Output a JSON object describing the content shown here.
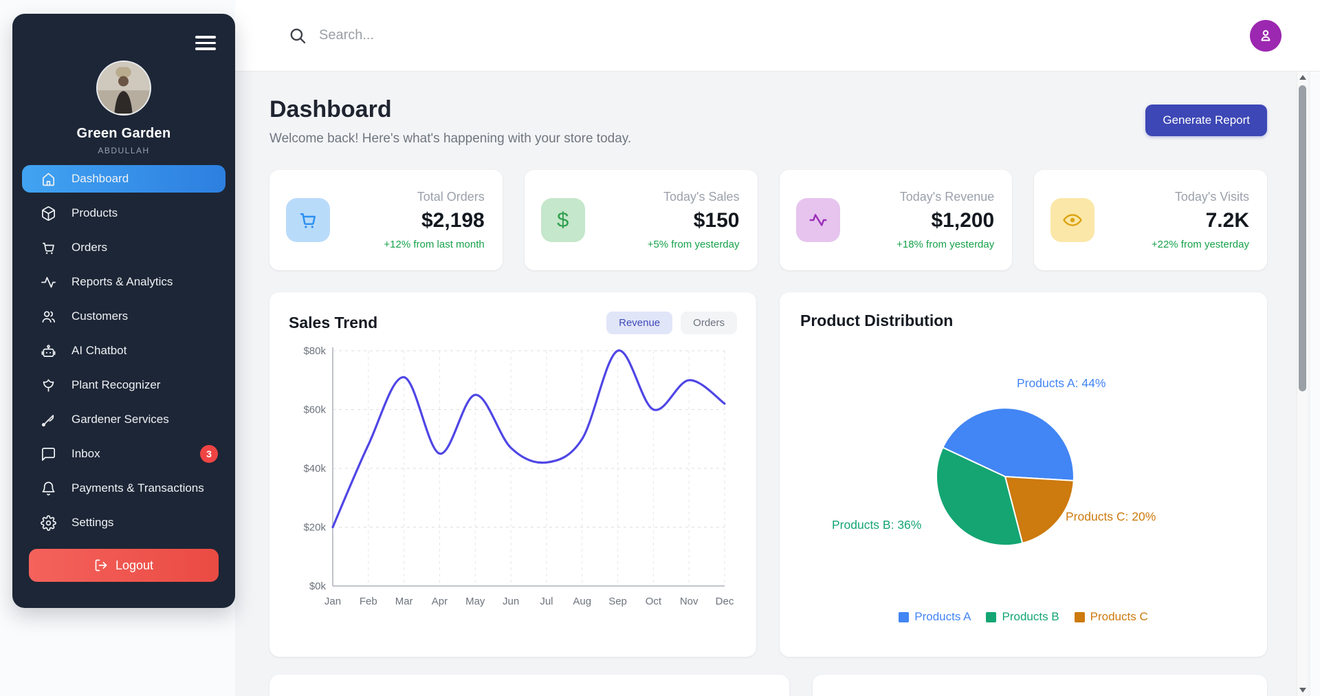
{
  "sidebar": {
    "store_name": "Green Garden",
    "user_name": "ABDULLAH",
    "items": [
      {
        "label": "Dashboard",
        "icon": "home-icon",
        "active": true
      },
      {
        "label": "Products",
        "icon": "package-icon"
      },
      {
        "label": "Orders",
        "icon": "cart-icon"
      },
      {
        "label": "Reports & Analytics",
        "icon": "activity-icon"
      },
      {
        "label": "Customers",
        "icon": "users-icon"
      },
      {
        "label": "AI Chatbot",
        "icon": "robot-icon"
      },
      {
        "label": "Plant Recognizer",
        "icon": "flower-icon"
      },
      {
        "label": "Gardener Services",
        "icon": "shears-icon"
      },
      {
        "label": "Inbox",
        "icon": "chat-icon",
        "badge": "3"
      },
      {
        "label": "Payments & Transactions",
        "icon": "bell-icon"
      },
      {
        "label": "Settings",
        "icon": "gear-icon"
      }
    ],
    "logout_label": "Logout",
    "active_color": "#2d7fe0",
    "logout_color": "#ee4f48",
    "badge_color": "#ef4444"
  },
  "topbar": {
    "search_placeholder": "Search..."
  },
  "header": {
    "title": "Dashboard",
    "subtitle": "Welcome back! Here's what's happening with your store today.",
    "report_button": "Generate Report",
    "report_button_color": "#3d47b5"
  },
  "stat_cards": [
    {
      "label": "Total Orders",
      "value": "$2,198",
      "change": "+12% from last month",
      "icon": "cart-icon",
      "icon_color": "#2e90f0",
      "icon_bg": "#b9dbfa"
    },
    {
      "label": "Today's Sales",
      "value": "$150",
      "change": "+5% from yesterday",
      "icon": "dollar-icon",
      "icon_glyph": "$",
      "icon_color": "#2f9e4f",
      "icon_bg": "#c5e7cb"
    },
    {
      "label": "Today's Revenue",
      "value": "$1,200",
      "change": "+18% from yesterday",
      "icon": "pulse-icon",
      "icon_color": "#9c2fb8",
      "icon_bg": "#e6c4ee"
    },
    {
      "label": "Today's Visits",
      "value": "7.2K",
      "change": "+22% from yesterday",
      "icon": "eye-icon",
      "icon_color": "#dca413",
      "icon_bg": "#fbe7a8"
    }
  ],
  "chart_data": [
    {
      "type": "line",
      "title": "Sales Trend",
      "toggles": [
        {
          "label": "Revenue",
          "active": true
        },
        {
          "label": "Orders",
          "active": false
        }
      ],
      "x": [
        "Jan",
        "Feb",
        "Mar",
        "Apr",
        "May",
        "Jun",
        "Jul",
        "Aug",
        "Sep",
        "Oct",
        "Nov",
        "Dec"
      ],
      "series": [
        {
          "name": "Revenue",
          "values": [
            20000,
            48000,
            71000,
            45000,
            65000,
            47000,
            42000,
            50000,
            80000,
            60000,
            70000,
            62000
          ]
        }
      ],
      "ylabels": [
        "$0k",
        "$20k",
        "$40k",
        "$60k",
        "$80k"
      ],
      "ylim": [
        0,
        80000
      ],
      "grid": "dashed",
      "line_color": "#4f46e5"
    },
    {
      "type": "pie",
      "title": "Product Distribution",
      "slices": [
        {
          "label": "Products A",
          "value": 44,
          "callout": "Products A: 44%",
          "color": "#4285f4"
        },
        {
          "label": "Products B",
          "value": 36,
          "callout": "Products B: 36%",
          "color": "#14a573"
        },
        {
          "label": "Products C",
          "value": 20,
          "callout": "Products C: 20%",
          "color": "#cd7a0e"
        }
      ],
      "start_angle_deg": 295,
      "draw_sequence": [
        0,
        2,
        1
      ],
      "legend_position": "bottom"
    }
  ]
}
